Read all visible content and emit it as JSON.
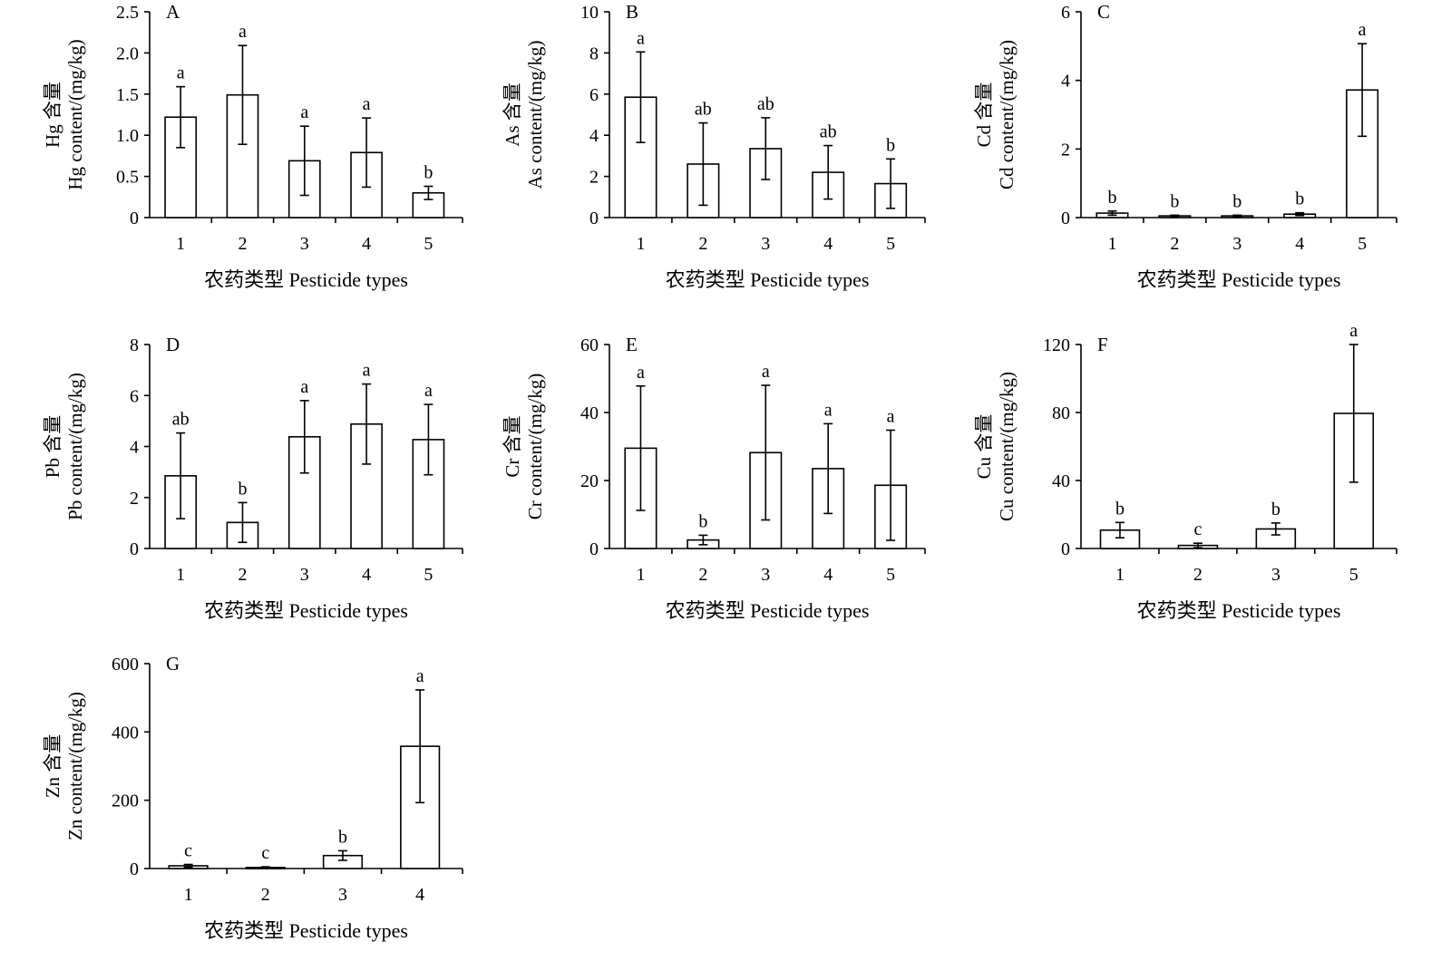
{
  "chart_data": [
    {
      "type": "bar",
      "panel": "A",
      "categories": [
        "1",
        "2",
        "3",
        "4",
        "5"
      ],
      "values": [
        1.22,
        1.49,
        0.69,
        0.79,
        0.3
      ],
      "errors": [
        0.37,
        0.6,
        0.42,
        0.42,
        0.08
      ],
      "labels": [
        "a",
        "a",
        "a",
        "a",
        "b"
      ],
      "ylim": [
        0,
        2.5
      ],
      "yticks": [
        "0",
        "0.5",
        "1.0",
        "1.5",
        "2.0",
        "2.5"
      ],
      "ylabel_cn": "Hg 含量",
      "ylabel_en": "Hg content/(mg/kg)",
      "xlabel": "农药类型 Pesticide types"
    },
    {
      "type": "bar",
      "panel": "B",
      "categories": [
        "1",
        "2",
        "3",
        "4",
        "5"
      ],
      "values": [
        5.85,
        2.6,
        3.35,
        2.2,
        1.65
      ],
      "errors": [
        2.2,
        2.0,
        1.5,
        1.3,
        1.2
      ],
      "labels": [
        "a",
        "ab",
        "ab",
        "ab",
        "b"
      ],
      "ylim": [
        0,
        10
      ],
      "yticks": [
        "0",
        "2",
        "4",
        "6",
        "8",
        "10"
      ],
      "ylabel_cn": "As 含量",
      "ylabel_en": "As content/(mg/kg)",
      "xlabel": "农药类型 Pesticide types"
    },
    {
      "type": "bar",
      "panel": "C",
      "categories": [
        "1",
        "2",
        "3",
        "4",
        "5"
      ],
      "values": [
        0.13,
        0.05,
        0.05,
        0.1,
        3.72
      ],
      "errors": [
        0.06,
        0.02,
        0.02,
        0.04,
        1.35
      ],
      "labels": [
        "b",
        "b",
        "b",
        "b",
        "a"
      ],
      "ylim": [
        0,
        6
      ],
      "yticks": [
        "0",
        "2",
        "4",
        "6"
      ],
      "ylabel_cn": "Cd 含量",
      "ylabel_en": "Cd content/(mg/kg)",
      "xlabel": "农药类型 Pesticide types"
    },
    {
      "type": "bar",
      "panel": "D",
      "categories": [
        "1",
        "2",
        "3",
        "4",
        "5"
      ],
      "values": [
        2.85,
        1.02,
        4.38,
        4.88,
        4.27
      ],
      "errors": [
        1.68,
        0.78,
        1.42,
        1.57,
        1.38
      ],
      "labels": [
        "ab",
        "b",
        "a",
        "a",
        "a"
      ],
      "ylim": [
        0,
        8
      ],
      "yticks": [
        "0",
        "2",
        "4",
        "6",
        "8"
      ],
      "ylabel_cn": "Pb 含量",
      "ylabel_en": "Pb content/(mg/kg)",
      "xlabel": "农药类型 Pesticide types"
    },
    {
      "type": "bar",
      "panel": "E",
      "categories": [
        "1",
        "2",
        "3",
        "4",
        "5"
      ],
      "values": [
        29.5,
        2.5,
        28.2,
        23.5,
        18.6
      ],
      "errors": [
        18.3,
        1.4,
        19.8,
        13.2,
        16.2
      ],
      "labels": [
        "a",
        "b",
        "a",
        "a",
        "a"
      ],
      "ylim": [
        0,
        60
      ],
      "yticks": [
        "0",
        "20",
        "40",
        "60"
      ],
      "ylabel_cn": "Cr 含量",
      "ylabel_en": "Cr content/(mg/kg)",
      "xlabel": "农药类型 Pesticide types"
    },
    {
      "type": "bar",
      "panel": "F",
      "categories": [
        "1",
        "2",
        "3",
        "5"
      ],
      "values": [
        10.8,
        1.8,
        11.5,
        79.5
      ],
      "errors": [
        4.5,
        1.3,
        3.5,
        40.5
      ],
      "labels": [
        "b",
        "c",
        "b",
        "a"
      ],
      "ylim": [
        0,
        120
      ],
      "yticks": [
        "0",
        "40",
        "80",
        "120"
      ],
      "ylabel_cn": "Cu 含量",
      "ylabel_en": "Cu content/(mg/kg)",
      "xlabel": "农药类型 Pesticide types"
    },
    {
      "type": "bar",
      "panel": "G",
      "categories": [
        "1",
        "2",
        "3",
        "4"
      ],
      "values": [
        8,
        3,
        38,
        358
      ],
      "errors": [
        4,
        2,
        14,
        165
      ],
      "labels": [
        "c",
        "c",
        "b",
        "a"
      ],
      "ylim": [
        0,
        600
      ],
      "yticks": [
        "0",
        "200",
        "400",
        "600"
      ],
      "ylabel_cn": "Zn 含量",
      "ylabel_en": "Zn content/(mg/kg)",
      "xlabel": "农药类型 Pesticide types"
    }
  ]
}
